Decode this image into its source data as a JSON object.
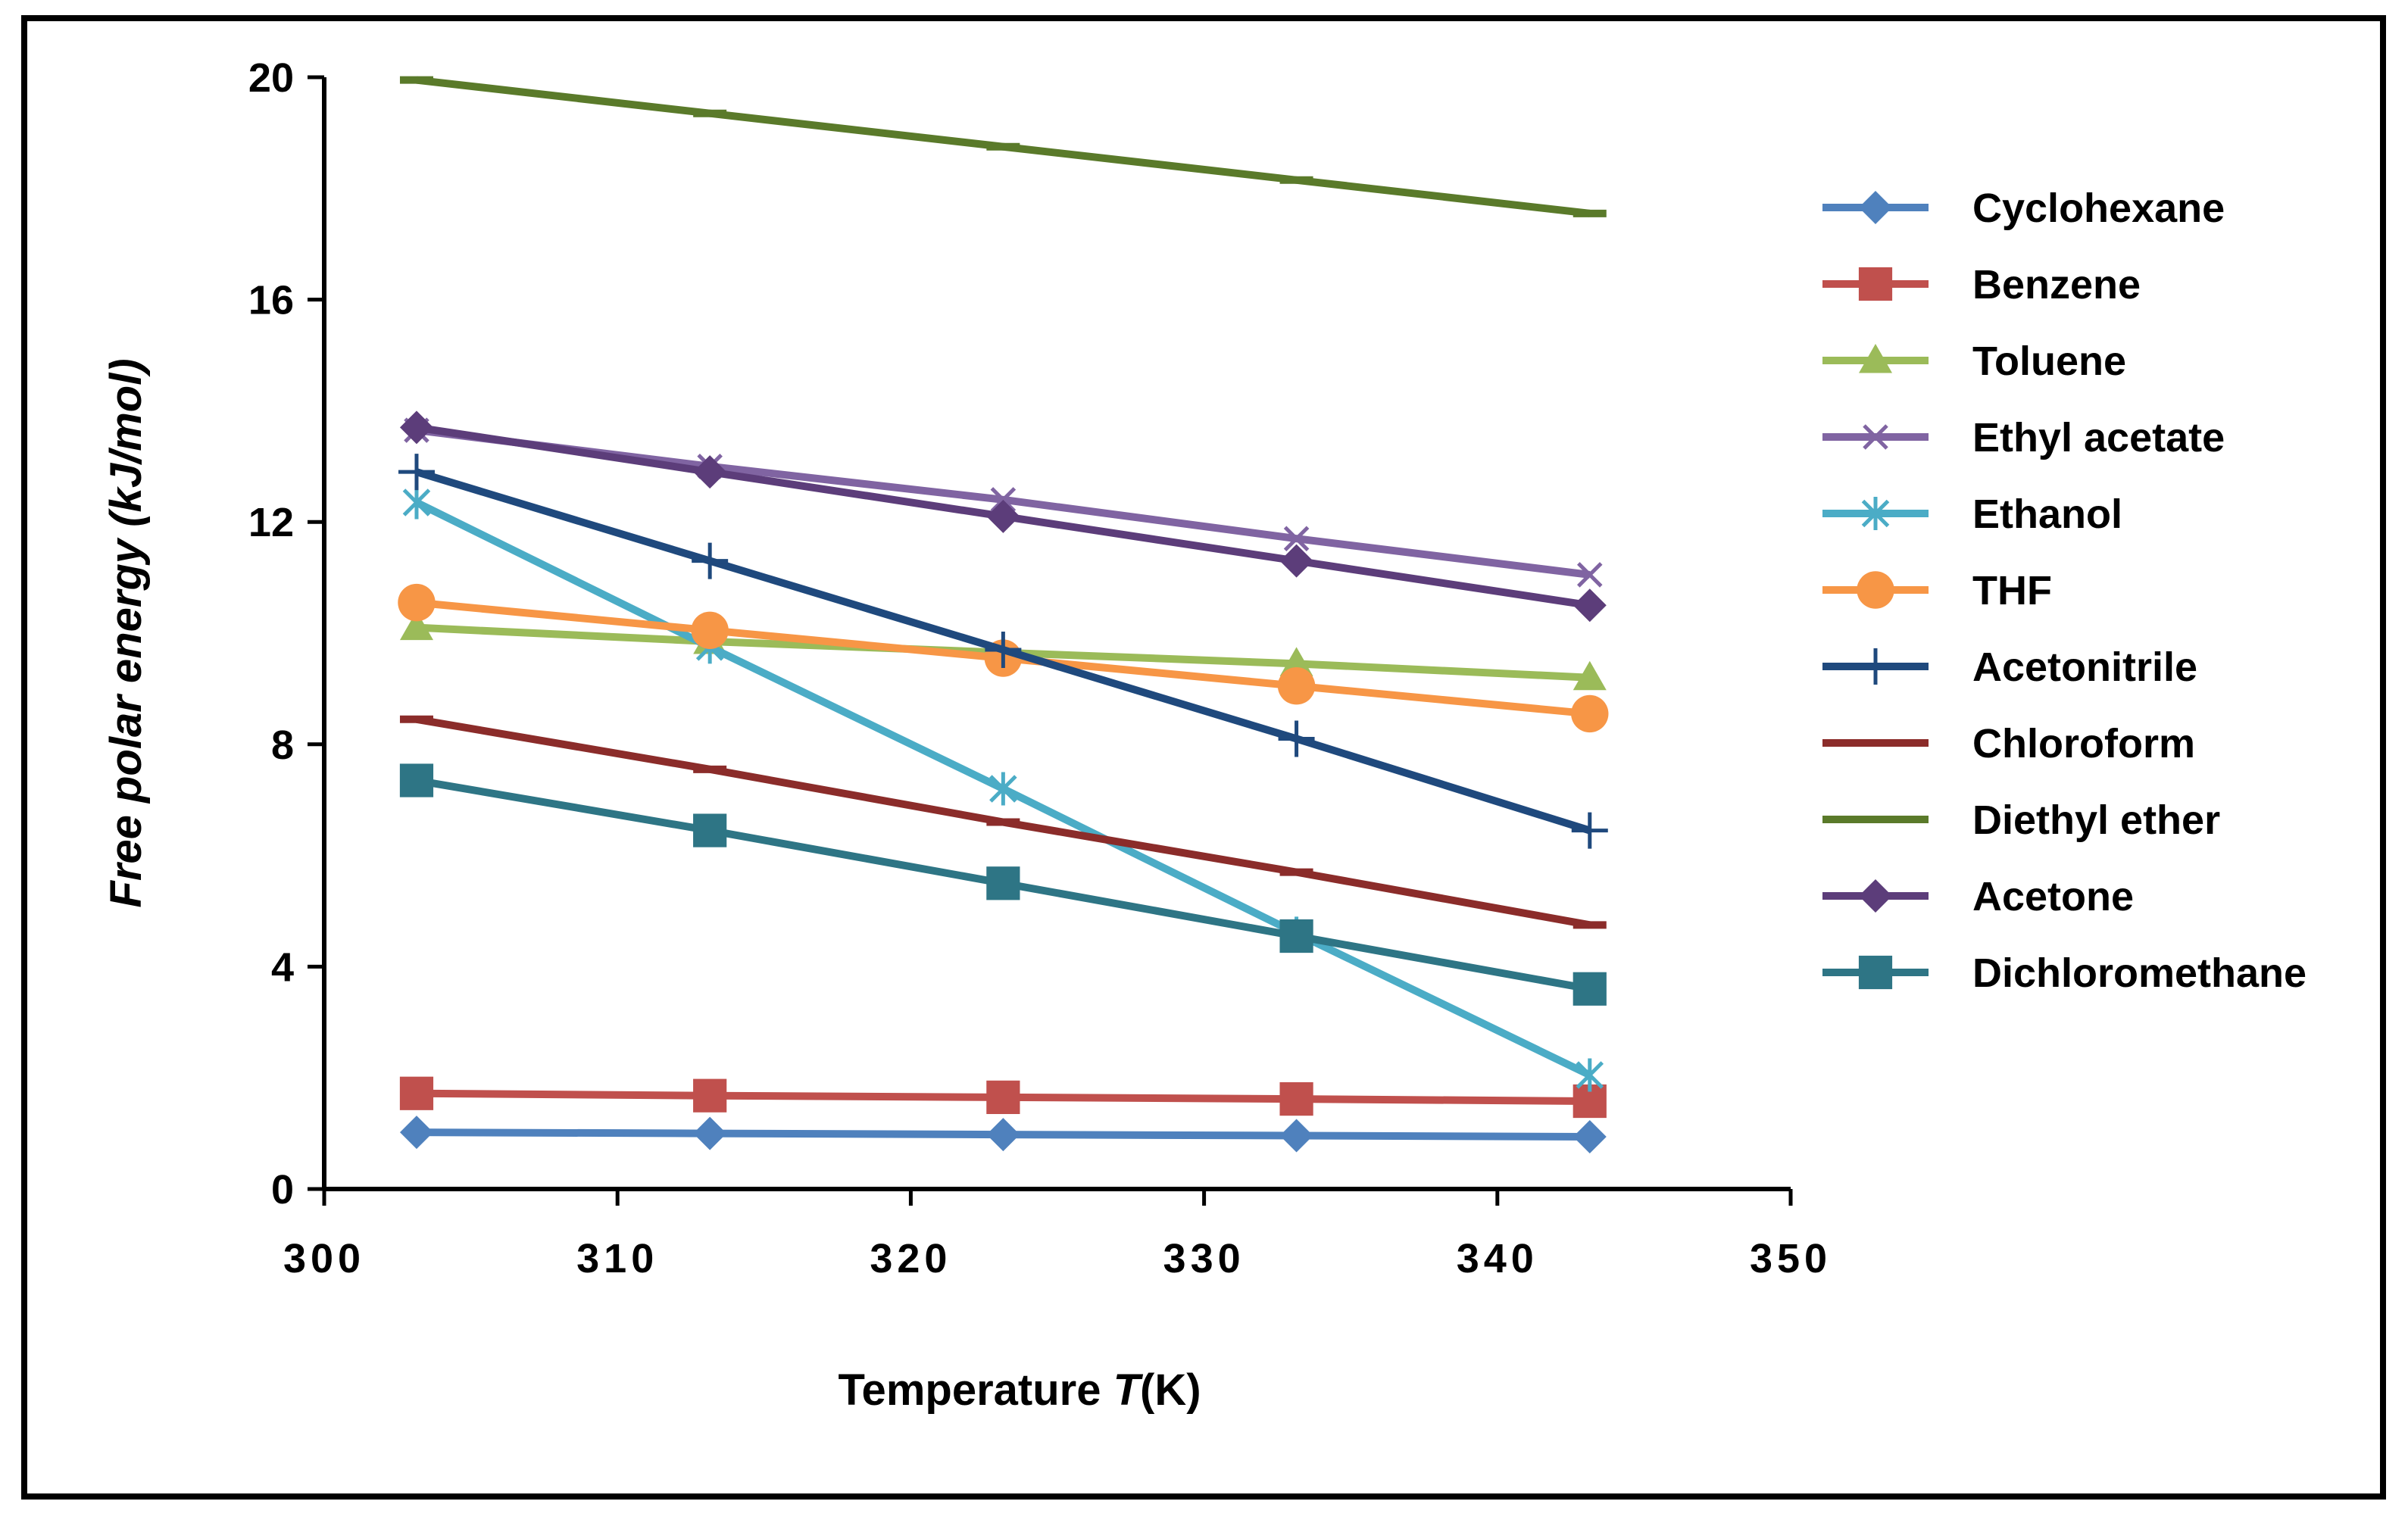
{
  "chart_data": {
    "type": "line",
    "title": "",
    "xlabel_prefix": "Temperature ",
    "xlabel_var": "T",
    "xlabel_suffix": "(K)",
    "ylabel": "Free polar energy (kJ/mol)",
    "xlim": [
      300,
      350
    ],
    "ylim": [
      0,
      20
    ],
    "xticks": [
      300,
      310,
      320,
      330,
      340,
      350
    ],
    "yticks": [
      0,
      4,
      8,
      12,
      16,
      20
    ],
    "grid": false,
    "legend_position": "right",
    "x": [
      303.15,
      313.15,
      323.15,
      333.15,
      343.15
    ],
    "series": [
      {
        "name": "Cyclohexane",
        "color": "#4f81bd",
        "marker": "diamond",
        "values": [
          1.02,
          1.0,
          0.98,
          0.96,
          0.94
        ]
      },
      {
        "name": "Benzene",
        "color": "#c0504d",
        "marker": "square",
        "values": [
          1.72,
          1.68,
          1.65,
          1.62,
          1.58
        ]
      },
      {
        "name": "Toluene",
        "color": "#9bbb59",
        "marker": "triangle",
        "values": [
          10.1,
          9.85,
          9.65,
          9.45,
          9.2
        ]
      },
      {
        "name": "Ethyl acetate",
        "color": "#8064a2",
        "marker": "x",
        "values": [
          13.65,
          13.0,
          12.4,
          11.7,
          11.05
        ]
      },
      {
        "name": "Ethanol",
        "color": "#4bacc6",
        "marker": "star",
        "values": [
          12.35,
          9.75,
          7.2,
          4.6,
          2.05
        ]
      },
      {
        "name": "THF",
        "color": "#f79646",
        "marker": "circle",
        "values": [
          10.55,
          10.05,
          9.55,
          9.05,
          8.55
        ]
      },
      {
        "name": "Acetonitrile",
        "color": "#1f497d",
        "marker": "plus",
        "values": [
          12.9,
          11.3,
          9.7,
          8.1,
          6.45
        ]
      },
      {
        "name": "Chloroform",
        "color": "#8b2c2a",
        "marker": "dash",
        "values": [
          8.45,
          7.55,
          6.6,
          5.7,
          4.75
        ]
      },
      {
        "name": "Diethyl ether",
        "color": "#5a7a2a",
        "marker": "dash",
        "values": [
          19.95,
          19.35,
          18.75,
          18.15,
          17.55
        ]
      },
      {
        "name": "Acetone",
        "color": "#5c3d7a",
        "marker": "diamond",
        "values": [
          13.7,
          12.9,
          12.1,
          11.3,
          10.5
        ]
      },
      {
        "name": "Dichloromethane",
        "color": "#2e7585",
        "marker": "square",
        "values": [
          7.35,
          6.45,
          5.5,
          4.55,
          3.6
        ]
      }
    ]
  }
}
